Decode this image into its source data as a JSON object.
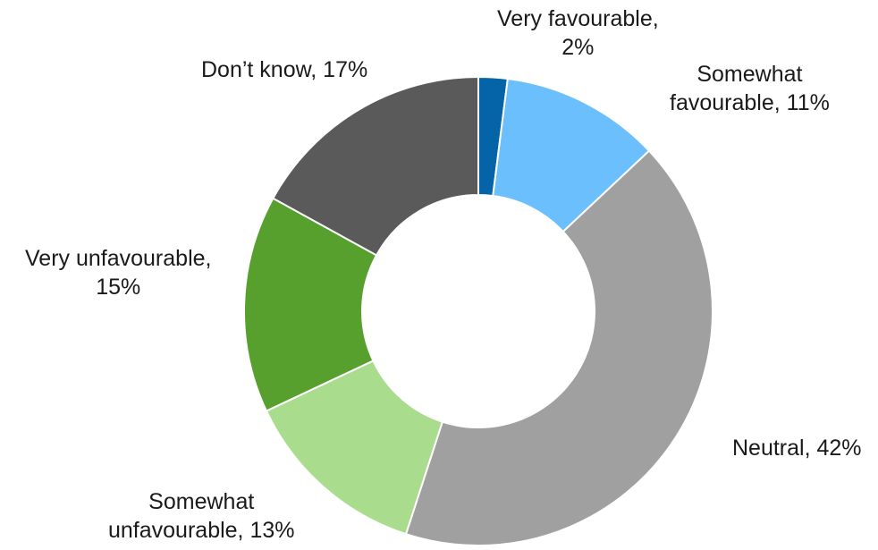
{
  "chart_data": {
    "type": "pie",
    "variant": "donut",
    "title": "",
    "legend": "none",
    "slices": [
      {
        "name": "Very favourable",
        "value": 2,
        "value_label": "2%",
        "label_lines": [
          "Very favourable,",
          "2%"
        ],
        "color": "#0563a8"
      },
      {
        "name": "Somewhat favourable",
        "value": 11,
        "value_label": "11%",
        "label_lines": [
          "Somewhat",
          "favourable, 11%"
        ],
        "color": "#6bbffc"
      },
      {
        "name": "Neutral",
        "value": 42,
        "value_label": "42%",
        "label_lines": [
          "Neutral, 42%"
        ],
        "color": "#a0a0a0"
      },
      {
        "name": "Somewhat unfavourable",
        "value": 13,
        "value_label": "13%",
        "label_lines": [
          "Somewhat",
          "unfavourable, 13%"
        ],
        "color": "#a9dc8c"
      },
      {
        "name": "Very unfavourable",
        "value": 15,
        "value_label": "15%",
        "label_lines": [
          "Very unfavourable,",
          "15%"
        ],
        "color": "#58a02e"
      },
      {
        "name": "Don’t know",
        "value": 17,
        "value_label": "17%",
        "label_lines": [
          "Don’t know, 17%"
        ],
        "color": "#5a5a5a"
      }
    ]
  }
}
